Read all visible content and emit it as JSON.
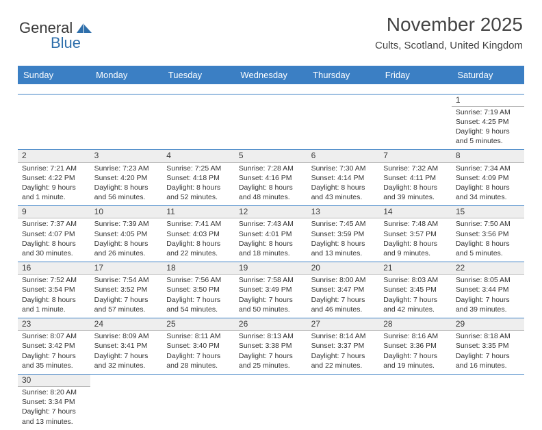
{
  "logo": {
    "text1": "General",
    "text2": "Blue"
  },
  "title": "November 2025",
  "location": "Cults, Scotland, United Kingdom",
  "colors": {
    "header_bg": "#3b7fc4",
    "header_text": "#ffffff",
    "daynum_bg": "#eeeeee",
    "rule": "#3b7fc4",
    "text": "#333333"
  },
  "dayHeaders": [
    "Sunday",
    "Monday",
    "Tuesday",
    "Wednesday",
    "Thursday",
    "Friday",
    "Saturday"
  ],
  "weeks": [
    [
      null,
      null,
      null,
      null,
      null,
      null,
      {
        "n": "1",
        "sunrise": "7:19 AM",
        "sunset": "4:25 PM",
        "daylight": "9 hours and 5 minutes."
      }
    ],
    [
      {
        "n": "2",
        "sunrise": "7:21 AM",
        "sunset": "4:22 PM",
        "daylight": "9 hours and 1 minute."
      },
      {
        "n": "3",
        "sunrise": "7:23 AM",
        "sunset": "4:20 PM",
        "daylight": "8 hours and 56 minutes."
      },
      {
        "n": "4",
        "sunrise": "7:25 AM",
        "sunset": "4:18 PM",
        "daylight": "8 hours and 52 minutes."
      },
      {
        "n": "5",
        "sunrise": "7:28 AM",
        "sunset": "4:16 PM",
        "daylight": "8 hours and 48 minutes."
      },
      {
        "n": "6",
        "sunrise": "7:30 AM",
        "sunset": "4:14 PM",
        "daylight": "8 hours and 43 minutes."
      },
      {
        "n": "7",
        "sunrise": "7:32 AM",
        "sunset": "4:11 PM",
        "daylight": "8 hours and 39 minutes."
      },
      {
        "n": "8",
        "sunrise": "7:34 AM",
        "sunset": "4:09 PM",
        "daylight": "8 hours and 34 minutes."
      }
    ],
    [
      {
        "n": "9",
        "sunrise": "7:37 AM",
        "sunset": "4:07 PM",
        "daylight": "8 hours and 30 minutes."
      },
      {
        "n": "10",
        "sunrise": "7:39 AM",
        "sunset": "4:05 PM",
        "daylight": "8 hours and 26 minutes."
      },
      {
        "n": "11",
        "sunrise": "7:41 AM",
        "sunset": "4:03 PM",
        "daylight": "8 hours and 22 minutes."
      },
      {
        "n": "12",
        "sunrise": "7:43 AM",
        "sunset": "4:01 PM",
        "daylight": "8 hours and 18 minutes."
      },
      {
        "n": "13",
        "sunrise": "7:45 AM",
        "sunset": "3:59 PM",
        "daylight": "8 hours and 13 minutes."
      },
      {
        "n": "14",
        "sunrise": "7:48 AM",
        "sunset": "3:57 PM",
        "daylight": "8 hours and 9 minutes."
      },
      {
        "n": "15",
        "sunrise": "7:50 AM",
        "sunset": "3:56 PM",
        "daylight": "8 hours and 5 minutes."
      }
    ],
    [
      {
        "n": "16",
        "sunrise": "7:52 AM",
        "sunset": "3:54 PM",
        "daylight": "8 hours and 1 minute."
      },
      {
        "n": "17",
        "sunrise": "7:54 AM",
        "sunset": "3:52 PM",
        "daylight": "7 hours and 57 minutes."
      },
      {
        "n": "18",
        "sunrise": "7:56 AM",
        "sunset": "3:50 PM",
        "daylight": "7 hours and 54 minutes."
      },
      {
        "n": "19",
        "sunrise": "7:58 AM",
        "sunset": "3:49 PM",
        "daylight": "7 hours and 50 minutes."
      },
      {
        "n": "20",
        "sunrise": "8:00 AM",
        "sunset": "3:47 PM",
        "daylight": "7 hours and 46 minutes."
      },
      {
        "n": "21",
        "sunrise": "8:03 AM",
        "sunset": "3:45 PM",
        "daylight": "7 hours and 42 minutes."
      },
      {
        "n": "22",
        "sunrise": "8:05 AM",
        "sunset": "3:44 PM",
        "daylight": "7 hours and 39 minutes."
      }
    ],
    [
      {
        "n": "23",
        "sunrise": "8:07 AM",
        "sunset": "3:42 PM",
        "daylight": "7 hours and 35 minutes."
      },
      {
        "n": "24",
        "sunrise": "8:09 AM",
        "sunset": "3:41 PM",
        "daylight": "7 hours and 32 minutes."
      },
      {
        "n": "25",
        "sunrise": "8:11 AM",
        "sunset": "3:40 PM",
        "daylight": "7 hours and 28 minutes."
      },
      {
        "n": "26",
        "sunrise": "8:13 AM",
        "sunset": "3:38 PM",
        "daylight": "7 hours and 25 minutes."
      },
      {
        "n": "27",
        "sunrise": "8:14 AM",
        "sunset": "3:37 PM",
        "daylight": "7 hours and 22 minutes."
      },
      {
        "n": "28",
        "sunrise": "8:16 AM",
        "sunset": "3:36 PM",
        "daylight": "7 hours and 19 minutes."
      },
      {
        "n": "29",
        "sunrise": "8:18 AM",
        "sunset": "3:35 PM",
        "daylight": "7 hours and 16 minutes."
      }
    ],
    [
      {
        "n": "30",
        "sunrise": "8:20 AM",
        "sunset": "3:34 PM",
        "daylight": "7 hours and 13 minutes."
      },
      null,
      null,
      null,
      null,
      null,
      null
    ]
  ],
  "labels": {
    "sunrise": "Sunrise: ",
    "sunset": "Sunset: ",
    "daylight": "Daylight: "
  }
}
